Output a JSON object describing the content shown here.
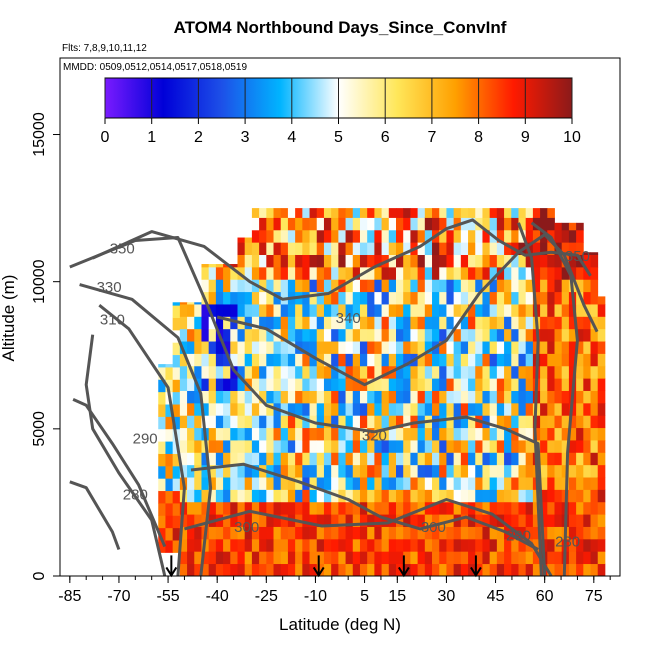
{
  "chart_data": {
    "type": "heatmap",
    "title": "ATOM4 Northbound Days_Since_ConvInf",
    "subtitle_flights": "Flts: 7,8,9,10,11,12",
    "subtitle_dates": "MMDD: 0509,0512,0514,0517,0518,0519",
    "xlabel": "Latitude (deg N)",
    "ylabel": "Altitude (m)",
    "xlim": [
      -88,
      83
    ],
    "ylim": [
      0,
      17600
    ],
    "x_ticks": [
      -85,
      -70,
      -55,
      -40,
      -25,
      -10,
      5,
      15,
      30,
      45,
      60,
      75
    ],
    "y_ticks": [
      0,
      5000,
      10000,
      15000
    ],
    "colorbar": {
      "min": 0,
      "max": 10,
      "ticks": [
        0,
        1,
        2,
        3,
        4,
        5,
        6,
        7,
        8,
        9,
        10
      ],
      "colors": [
        "#7a1bff",
        "#0000d8",
        "#1d50e8",
        "#00b4ff",
        "#ffffff",
        "#ffe75a",
        "#ffa000",
        "#ff1a00",
        "#8b1a1a"
      ]
    },
    "contours": [
      {
        "label": "350",
        "lat": -69,
        "alt": 10950
      },
      {
        "label": "330",
        "lat": -73,
        "alt": 9650
      },
      {
        "label": "310",
        "lat": -72,
        "alt": 8550
      },
      {
        "label": "290",
        "lat": -62,
        "alt": 4500
      },
      {
        "label": "280",
        "lat": -65,
        "alt": 2600
      },
      {
        "label": "340",
        "lat": 0,
        "alt": 8600
      },
      {
        "label": "320",
        "lat": 8,
        "alt": 4600
      },
      {
        "label": "300",
        "lat": -31,
        "alt": 1500
      },
      {
        "label": "300",
        "lat": 26,
        "alt": 1500
      },
      {
        "label": "290",
        "lat": 52,
        "alt": 1200
      },
      {
        "label": "280",
        "lat": 67,
        "alt": 1000
      },
      {
        "label": "350",
        "lat": 70,
        "alt": 10700
      }
    ],
    "profile_markers_lat": [
      -54,
      -9,
      17,
      39
    ]
  }
}
